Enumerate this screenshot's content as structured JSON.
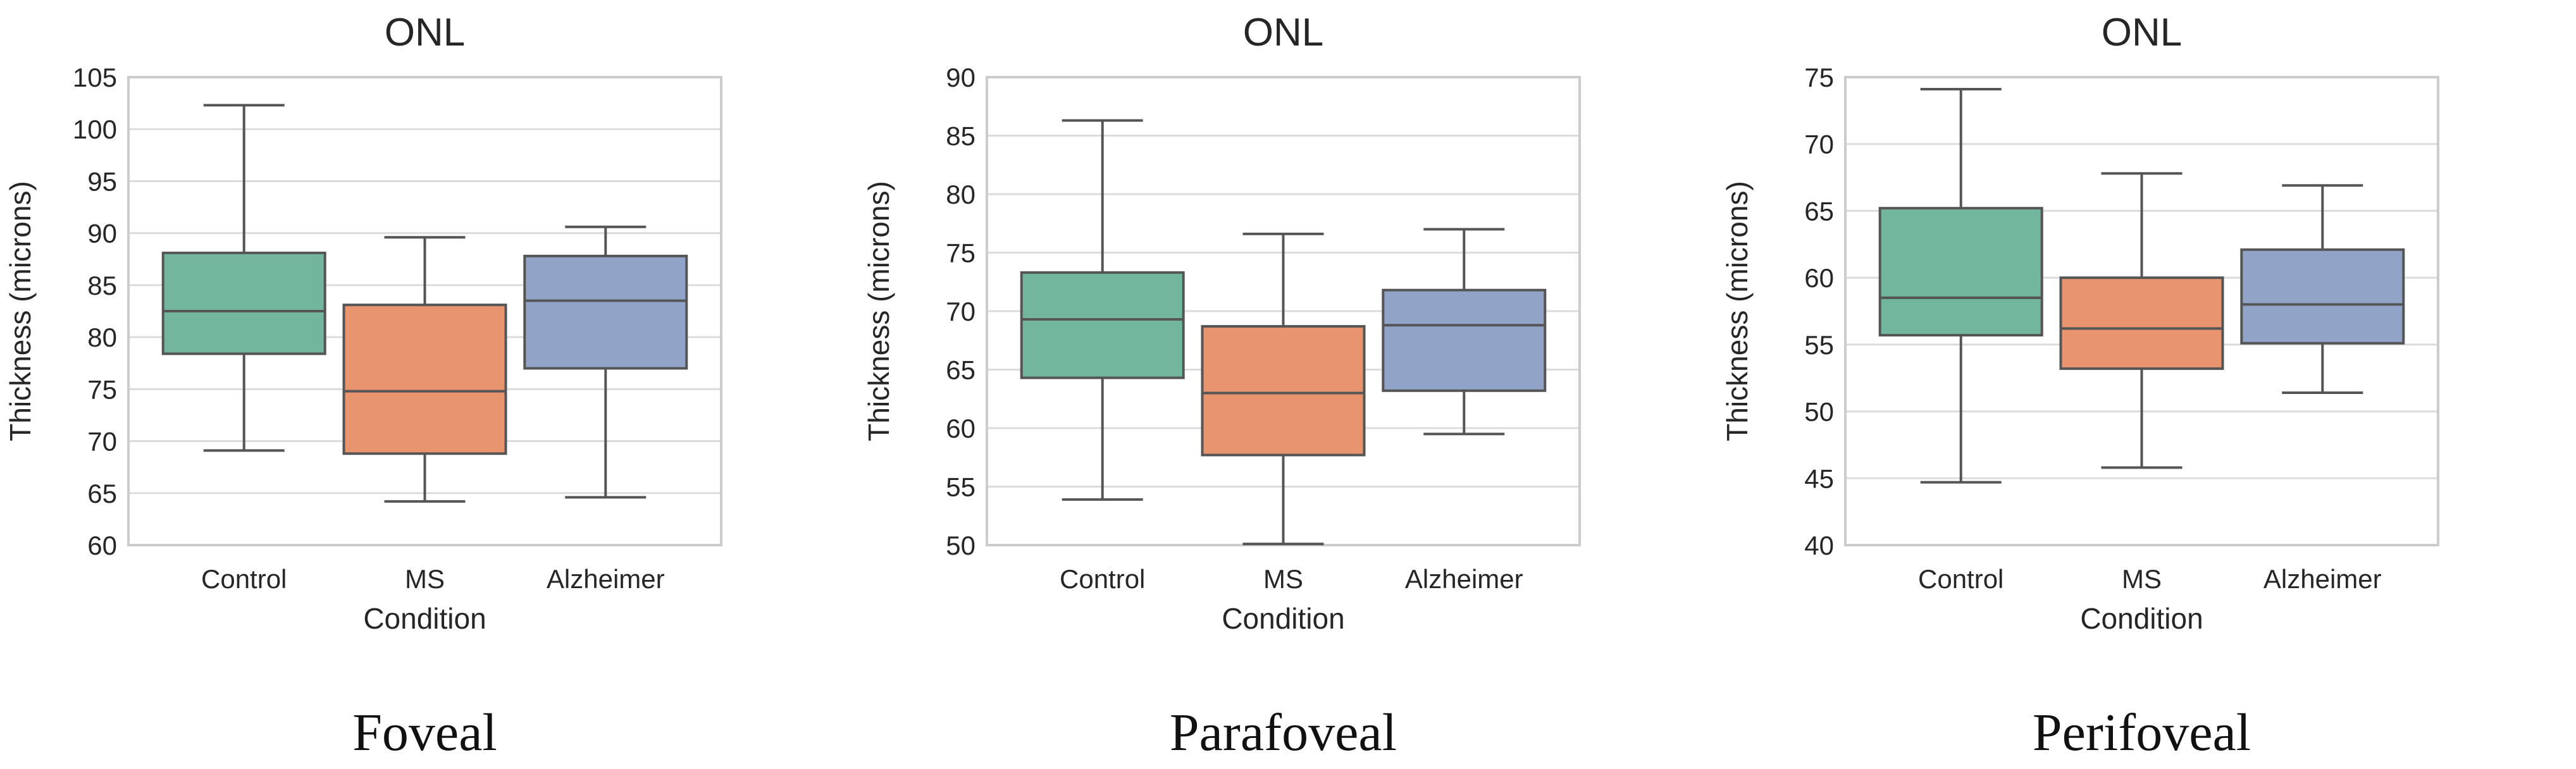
{
  "chart_data": [
    {
      "type": "box",
      "title": "ONL",
      "caption": "Foveal",
      "xlabel": "Condition",
      "ylabel": "Thickness (microns)",
      "ylim": [
        60,
        105
      ],
      "yticks": [
        "60",
        "65",
        "70",
        "75",
        "80",
        "85",
        "90",
        "95",
        "100",
        "105"
      ],
      "grid": true,
      "categories": [
        "Control",
        "MS",
        "Alzheimer"
      ],
      "colors": [
        "#72b69d",
        "#e8956f",
        "#91a3c7"
      ],
      "boxes": [
        {
          "whisker_low": 69.1,
          "q1": 78.4,
          "median": 82.5,
          "q3": 88.1,
          "whisker_high": 102.3
        },
        {
          "whisker_low": 64.2,
          "q1": 68.8,
          "median": 74.8,
          "q3": 83.1,
          "whisker_high": 89.6
        },
        {
          "whisker_low": 64.6,
          "q1": 77.0,
          "median": 83.5,
          "q3": 87.8,
          "whisker_high": 90.6
        }
      ]
    },
    {
      "type": "box",
      "title": "ONL",
      "caption": "Parafoveal",
      "xlabel": "Condition",
      "ylabel": "Thickness (microns)",
      "ylim": [
        50,
        90
      ],
      "yticks": [
        "50",
        "55",
        "60",
        "65",
        "70",
        "75",
        "80",
        "85",
        "90"
      ],
      "grid": true,
      "categories": [
        "Control",
        "MS",
        "Alzheimer"
      ],
      "colors": [
        "#72b69d",
        "#e8956f",
        "#91a3c7"
      ],
      "boxes": [
        {
          "whisker_low": 53.9,
          "q1": 64.3,
          "median": 69.3,
          "q3": 73.3,
          "whisker_high": 86.3
        },
        {
          "whisker_low": 50.1,
          "q1": 57.7,
          "median": 63.0,
          "q3": 68.7,
          "whisker_high": 76.6
        },
        {
          "whisker_low": 59.5,
          "q1": 63.2,
          "median": 68.8,
          "q3": 71.8,
          "whisker_high": 77.0
        }
      ]
    },
    {
      "type": "box",
      "title": "ONL",
      "caption": "Perifoveal",
      "xlabel": "Condition",
      "ylabel": "Thickness (microns)",
      "ylim": [
        40,
        75
      ],
      "yticks": [
        "40",
        "45",
        "50",
        "55",
        "60",
        "65",
        "70",
        "75"
      ],
      "grid": true,
      "categories": [
        "Control",
        "MS",
        "Alzheimer"
      ],
      "colors": [
        "#72b69d",
        "#e8956f",
        "#91a3c7"
      ],
      "boxes": [
        {
          "whisker_low": 44.7,
          "q1": 55.7,
          "median": 58.5,
          "q3": 65.2,
          "whisker_high": 74.1
        },
        {
          "whisker_low": 45.8,
          "q1": 53.2,
          "median": 56.2,
          "q3": 60.0,
          "whisker_high": 67.8
        },
        {
          "whisker_low": 51.4,
          "q1": 55.1,
          "median": 58.0,
          "q3": 62.1,
          "whisker_high": 66.9
        }
      ]
    }
  ]
}
